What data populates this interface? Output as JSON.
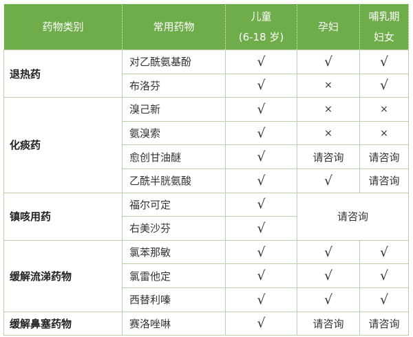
{
  "headers": [
    "药物类别",
    "常用药物",
    "儿童",
    "(6-18 岁)",
    "孕妇",
    "哺乳期",
    "妇女"
  ],
  "groups": [
    {
      "category": "退热药",
      "rows": [
        {
          "drug": "对乙酰氨基酚",
          "child": "√",
          "pregnant": "√",
          "lactating": "√"
        },
        {
          "drug": "布洛芬",
          "child": "√",
          "pregnant": "×",
          "lactating": "√"
        }
      ]
    },
    {
      "category": "化痰药",
      "rows": [
        {
          "drug": "溴己新",
          "child": "√",
          "pregnant": "×",
          "lactating": "×"
        },
        {
          "drug": "氨溴索",
          "child": "√",
          "pregnant": "×",
          "lactating": "×"
        },
        {
          "drug": "愈创甘油醚",
          "child": "√",
          "pregnant": "请咨询",
          "lactating": "请咨询"
        },
        {
          "drug": "乙酰半胱氨酸",
          "child": "√",
          "pregnant": "√",
          "lactating": "请咨询"
        }
      ]
    },
    {
      "category": "镇咳用药",
      "merged_note": "请咨询",
      "rows": [
        {
          "drug": "福尔可定",
          "child": "√"
        },
        {
          "drug": "右美沙芬",
          "child": "√"
        }
      ]
    },
    {
      "category": "缓解流涕药物",
      "rows": [
        {
          "drug": "氯苯那敏",
          "child": "√",
          "pregnant": "√",
          "lactating": "√"
        },
        {
          "drug": "氯雷他定",
          "child": "√",
          "pregnant": "√",
          "lactating": "√"
        },
        {
          "drug": "西替利嗪",
          "child": "√",
          "pregnant": "√",
          "lactating": "√"
        }
      ]
    },
    {
      "category": "缓解鼻塞药物",
      "rows": [
        {
          "drug": "赛洛唑啉",
          "child": "√",
          "pregnant": "请咨询",
          "lactating": "请咨询"
        }
      ]
    }
  ],
  "colors": {
    "header": "#6fac4a",
    "border": "#b9cfa8"
  }
}
